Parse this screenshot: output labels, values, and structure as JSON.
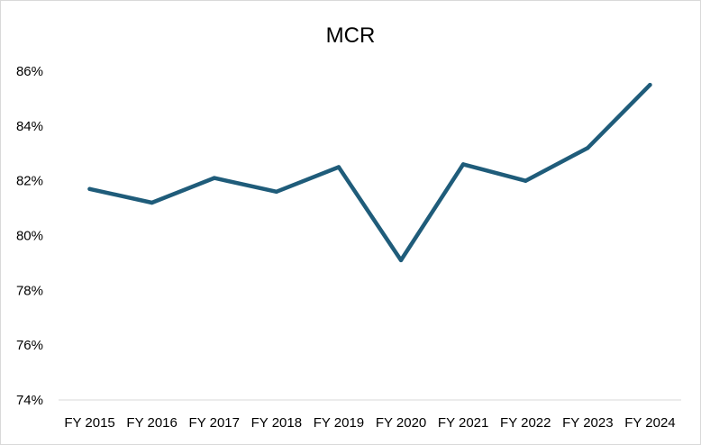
{
  "chart_data": {
    "type": "line",
    "title": "MCR",
    "xlabel": "",
    "ylabel": "",
    "categories": [
      "FY 2015",
      "FY 2016",
      "FY 2017",
      "FY 2018",
      "FY 2019",
      "FY 2020",
      "FY 2021",
      "FY 2022",
      "FY 2023",
      "FY 2024"
    ],
    "series": [
      {
        "values": [
          81.7,
          81.2,
          82.1,
          81.6,
          82.5,
          79.1,
          82.6,
          82.0,
          83.2,
          85.5
        ]
      }
    ],
    "ylim": [
      74,
      86
    ],
    "yticks": [
      74,
      76,
      78,
      80,
      82,
      84,
      86
    ],
    "ytick_labels": [
      "74%",
      "76%",
      "78%",
      "80%",
      "82%",
      "84%",
      "86%"
    ],
    "y_unit": "%",
    "grid": false,
    "legend": "none",
    "colors": {
      "line": "#1f5c7a",
      "axis": "#d9d9d9"
    }
  }
}
